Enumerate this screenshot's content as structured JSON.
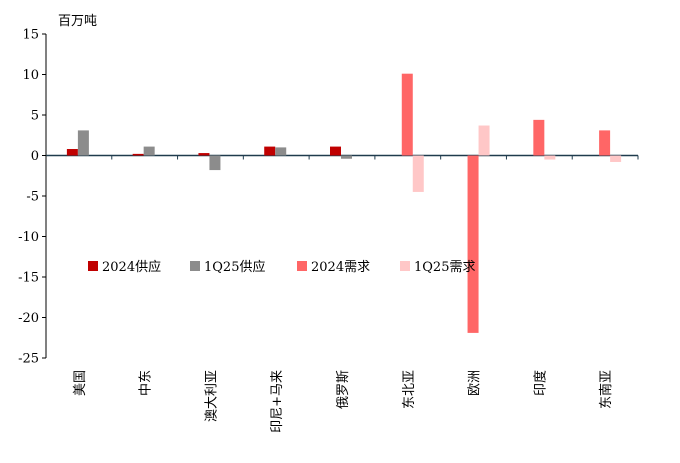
{
  "chart_data": {
    "type": "bar",
    "unit": "百万吨",
    "categories": [
      "美国",
      "中东",
      "澳大利亚",
      "印尼+马来",
      "俄罗斯",
      "东北亚",
      "欧洲",
      "印度",
      "东南亚"
    ],
    "series": [
      {
        "name": "2024供应",
        "color": "#c00000",
        "values": [
          0.8,
          0.2,
          0.3,
          1.1,
          1.1,
          0,
          0,
          0,
          0
        ]
      },
      {
        "name": "1Q25供应",
        "color": "#8c8c8c",
        "values": [
          3.1,
          1.1,
          -1.8,
          1.0,
          -0.4,
          0,
          0,
          0,
          0
        ]
      },
      {
        "name": "2024需求",
        "color": "#ff6666",
        "values": [
          0,
          0,
          0,
          0,
          0,
          10.1,
          -21.9,
          4.4,
          3.1
        ]
      },
      {
        "name": "1Q25需求",
        "color": "#ffc7c7",
        "values": [
          0,
          0,
          0,
          0,
          0,
          -4.5,
          3.7,
          -0.5,
          -0.8
        ]
      }
    ],
    "ylim": [
      -25,
      15
    ],
    "yticks": [
      15,
      10,
      5,
      0,
      -5,
      -10,
      -15,
      -20,
      -25
    ],
    "legend_position": "bottom-center-inside",
    "grid": false
  }
}
